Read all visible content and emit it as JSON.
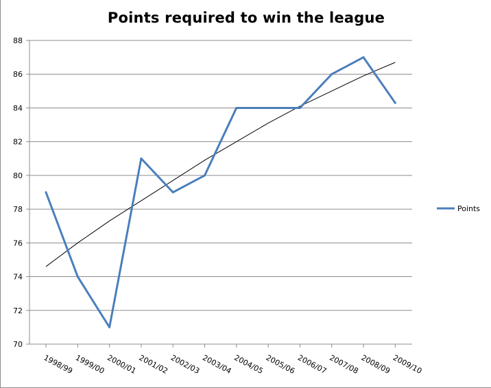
{
  "chart_data": {
    "type": "line",
    "title": "Points required to win the league",
    "xlabel": "",
    "ylabel": "",
    "categories": [
      "1998/99",
      "1999/00",
      "2000/01",
      "2001/02",
      "2002/03",
      "2003/04",
      "2004/05",
      "2005/06",
      "2006/07",
      "2007/08",
      "2008/09",
      "2009/10"
    ],
    "series": [
      {
        "name": "Points",
        "values": [
          79,
          74,
          71,
          81,
          79,
          80,
          84,
          84,
          84,
          86,
          87,
          84.3
        ],
        "color": "#4a7ebb"
      }
    ],
    "trendline": {
      "type": "polynomial",
      "values": [
        74.6,
        76.0,
        77.3,
        78.5,
        79.7,
        80.9,
        82.0,
        83.1,
        84.1,
        85.0,
        85.9,
        86.7
      ],
      "color": "#000000"
    },
    "ylim": [
      70,
      88
    ],
    "yticks": [
      70,
      72,
      74,
      76,
      78,
      80,
      82,
      84,
      86,
      88
    ],
    "grid": true,
    "legend": "right"
  }
}
